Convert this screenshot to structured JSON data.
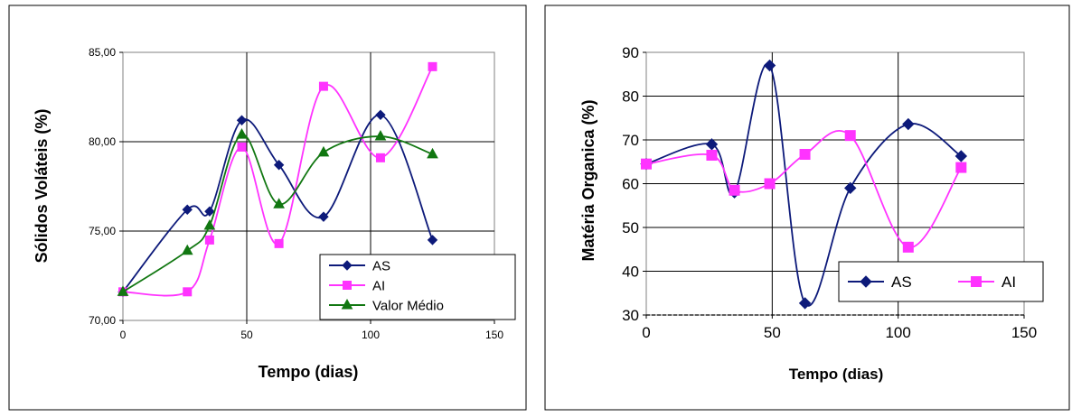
{
  "colors": {
    "as": "#0d1a7a",
    "ai": "#ff33ff",
    "valor_medio": "#117711",
    "grid": "#000000",
    "frame": "#000000"
  },
  "chart_data": [
    {
      "type": "line",
      "smooth": true,
      "xlabel": "Tempo (dias)",
      "ylabel": "Sólidos Voláteis (%)",
      "xlim": [
        0,
        150
      ],
      "ylim": [
        70,
        85
      ],
      "xticks": [
        "0",
        "50",
        "100",
        "150"
      ],
      "yticks": [
        "70,00",
        "75,00",
        "80,00",
        "85,00"
      ],
      "grid": true,
      "legend_position": "bottom-right",
      "series": [
        {
          "name": "AS",
          "marker": "diamond",
          "color_key": "as",
          "points": [
            [
              0,
              71.6
            ],
            [
              26,
              76.2
            ],
            [
              35,
              76.1
            ],
            [
              48,
              81.2
            ],
            [
              63,
              78.7
            ],
            [
              81,
              75.8
            ],
            [
              104,
              81.5
            ],
            [
              125,
              74.5
            ]
          ]
        },
        {
          "name": "AI",
          "marker": "square",
          "color_key": "ai",
          "points": [
            [
              0,
              71.6
            ],
            [
              26,
              71.6
            ],
            [
              35,
              74.5
            ],
            [
              48,
              79.7
            ],
            [
              63,
              74.3
            ],
            [
              81,
              83.1
            ],
            [
              104,
              79.1
            ],
            [
              125,
              84.2
            ]
          ]
        },
        {
          "name": "Valor Médio",
          "marker": "triangle",
          "color_key": "valor_medio",
          "points": [
            [
              0,
              71.6
            ],
            [
              26,
              73.9
            ],
            [
              35,
              75.3
            ],
            [
              48,
              80.4
            ],
            [
              63,
              76.5
            ],
            [
              81,
              79.4
            ],
            [
              104,
              80.3
            ],
            [
              125,
              79.3
            ]
          ]
        }
      ]
    },
    {
      "type": "line",
      "smooth": true,
      "xlabel": "Tempo (dias)",
      "ylabel": "Matéria Organica (%)",
      "xlim": [
        0,
        150
      ],
      "ylim": [
        30,
        90
      ],
      "xticks": [
        "0",
        "50",
        "100",
        "150"
      ],
      "yticks": [
        "30",
        "40",
        "50",
        "60",
        "70",
        "80",
        "90"
      ],
      "grid": true,
      "legend_position": "bottom-right",
      "series": [
        {
          "name": "AS",
          "marker": "diamond",
          "color_key": "as",
          "points": [
            [
              0,
              64.5
            ],
            [
              26,
              69
            ],
            [
              35,
              58
            ],
            [
              49,
              87
            ],
            [
              63,
              32.7
            ],
            [
              81,
              59
            ],
            [
              104,
              73.6
            ],
            [
              125,
              66.3
            ]
          ]
        },
        {
          "name": "AI",
          "marker": "square",
          "color_key": "ai",
          "points": [
            [
              0,
              64.5
            ],
            [
              26,
              66.5
            ],
            [
              35,
              58.5
            ],
            [
              49,
              60
            ],
            [
              63,
              66.7
            ],
            [
              81,
              71
            ],
            [
              104,
              45.5
            ],
            [
              125,
              63.7
            ]
          ]
        }
      ]
    }
  ]
}
